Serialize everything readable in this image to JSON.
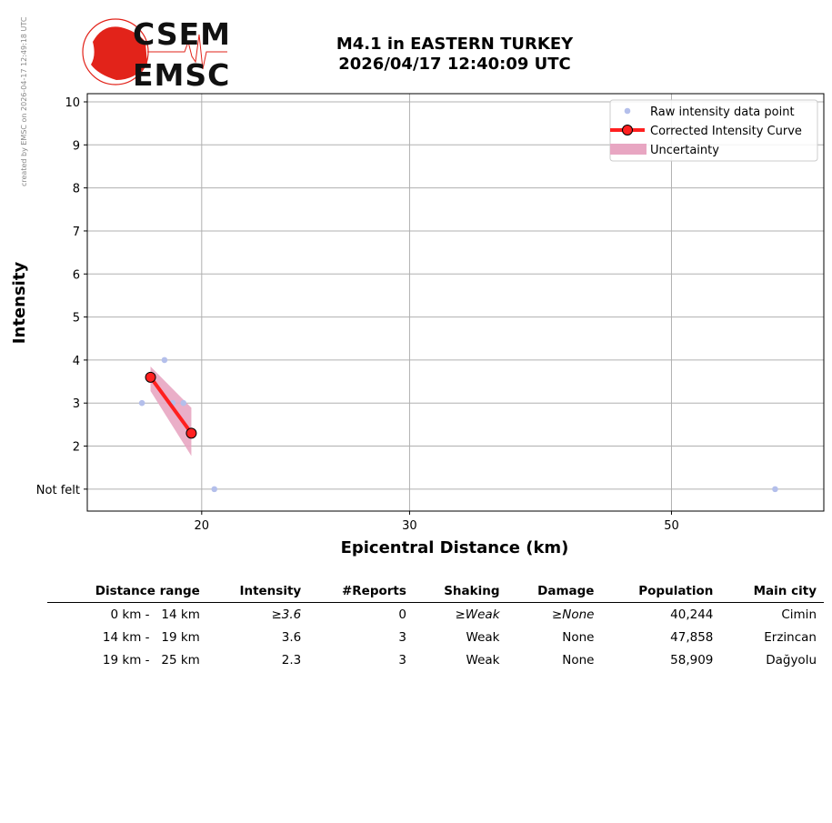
{
  "side_note": "created by EMSC on 2026-04-17 12:49:18 UTC",
  "logo": {
    "top": "CSEM",
    "bottom": "EMSC"
  },
  "title_line1": "M4.1 in EASTERN TURKEY",
  "title_line2": "2026/04/17 12:40:09 UTC",
  "chart_data": {
    "type": "scatter",
    "xlabel": "Epicentral Distance (km)",
    "ylabel": "Intensity",
    "xscale": "log",
    "xlim": [
      16.0,
      67.3
    ],
    "ylim": [
      0.49,
      10.19
    ],
    "xticks": [
      20,
      30,
      50
    ],
    "xtick_labels": [
      "20",
      "30",
      "50"
    ],
    "yticks": [
      1,
      2,
      3,
      4,
      5,
      6,
      7,
      8,
      9,
      10
    ],
    "ytick_labels": [
      "Not felt",
      "2",
      "3",
      "4",
      "5",
      "6",
      "7",
      "8",
      "9",
      "10"
    ],
    "grid": true,
    "legend_position": "top-right",
    "series": [
      {
        "name": "Raw intensity data point",
        "kind": "points",
        "color": "#b4bfeb",
        "x": [
          17.8,
          18.6,
          18.9,
          19.3,
          20.5,
          61.2
        ],
        "y": [
          3,
          4,
          3,
          3,
          1,
          1
        ]
      },
      {
        "name": "Corrected Intensity Curve",
        "kind": "line-markers",
        "color": "#ff2020",
        "x": [
          18.1,
          19.6
        ],
        "y": [
          3.6,
          2.3
        ]
      },
      {
        "name": "Uncertainty",
        "kind": "band",
        "color": "#e8a6c2",
        "x": [
          18.1,
          19.6
        ],
        "upper": [
          3.85,
          2.89
        ],
        "lower": [
          3.28,
          1.77
        ]
      }
    ]
  },
  "table": {
    "headers": [
      "Distance range",
      "Intensity",
      "#Reports",
      "Shaking",
      "Damage",
      "Population",
      "Main city"
    ],
    "rows": [
      {
        "range": "0 km -   14 km",
        "intensity": "≥3.6",
        "reports": "0",
        "shaking": "≥Weak",
        "damage": "≥None",
        "population": "40,244",
        "city": "Cimin",
        "estimated": true
      },
      {
        "range": "14 km -   19 km",
        "intensity": "3.6",
        "reports": "3",
        "shaking": "Weak",
        "damage": "None",
        "population": "47,858",
        "city": "Erzincan",
        "estimated": false
      },
      {
        "range": "19 km -   25 km",
        "intensity": "2.3",
        "reports": "3",
        "shaking": "Weak",
        "damage": "None",
        "population": "58,909",
        "city": "Dağyolu",
        "estimated": false
      }
    ]
  }
}
